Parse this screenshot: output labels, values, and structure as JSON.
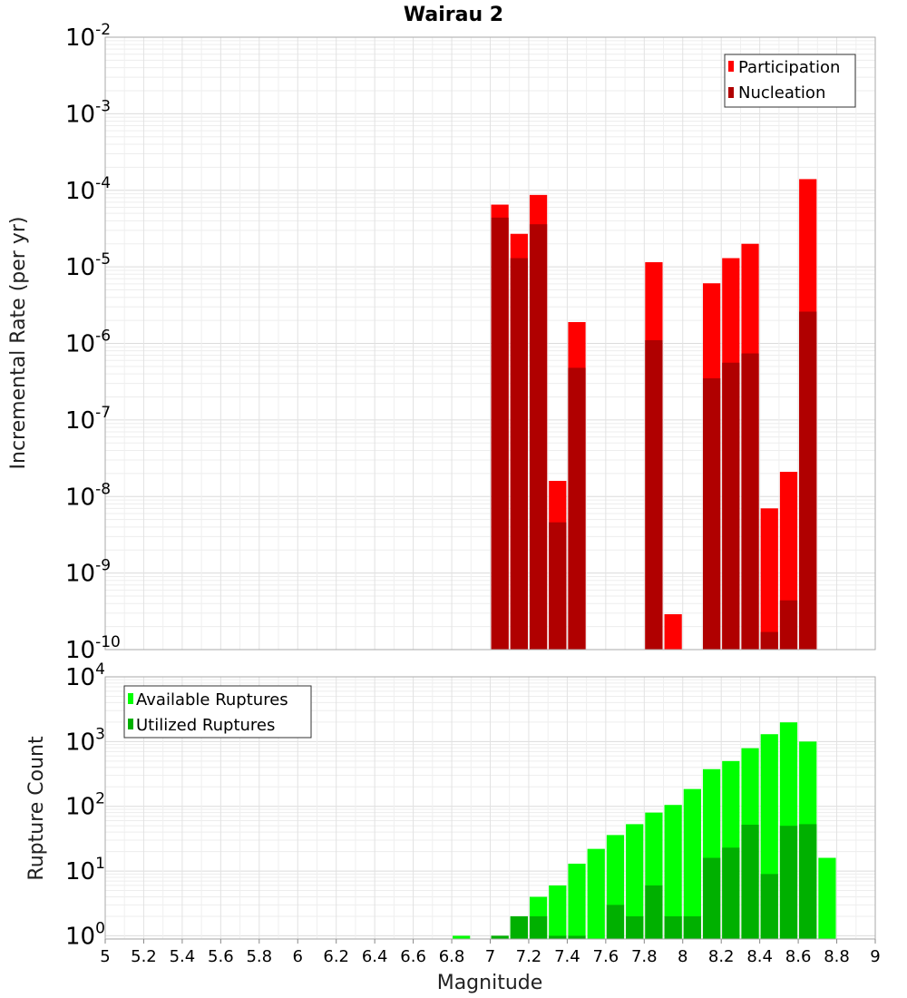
{
  "chart_data": [
    {
      "type": "bar",
      "title": "Wairau 2",
      "ylabel": "Incremental Rate (per yr)",
      "xlabel": "",
      "y_scale": "log",
      "ylim_exponents": [
        -10,
        -2
      ],
      "y_tick_base": "10",
      "y_tick_exponents": [
        "-2",
        "-3",
        "-4",
        "-5",
        "-6",
        "-7",
        "-8",
        "-9",
        "-10"
      ],
      "xlim": [
        5,
        9
      ],
      "bar_width": 0.1,
      "grid": true,
      "legend_position": "top-right",
      "colors": {
        "Participation": "#ff0000",
        "Nucleation": "#b00000"
      },
      "series": [
        {
          "name": "Participation",
          "points": [
            {
              "x": 7.05,
              "y": 6.5e-05
            },
            {
              "x": 7.15,
              "y": 2.7e-05
            },
            {
              "x": 7.25,
              "y": 8.7e-05
            },
            {
              "x": 7.35,
              "y": 1.6e-08
            },
            {
              "x": 7.45,
              "y": 1.9e-06
            },
            {
              "x": 7.85,
              "y": 1.15e-05
            },
            {
              "x": 7.95,
              "y": 2.9e-10
            },
            {
              "x": 8.15,
              "y": 6.1e-06
            },
            {
              "x": 8.25,
              "y": 1.3e-05
            },
            {
              "x": 8.35,
              "y": 2e-05
            },
            {
              "x": 8.45,
              "y": 7e-09
            },
            {
              "x": 8.55,
              "y": 2.1e-08
            },
            {
              "x": 8.65,
              "y": 0.00014
            }
          ]
        },
        {
          "name": "Nucleation",
          "points": [
            {
              "x": 7.05,
              "y": 4.4e-05
            },
            {
              "x": 7.15,
              "y": 1.3e-05
            },
            {
              "x": 7.25,
              "y": 3.6e-05
            },
            {
              "x": 7.35,
              "y": 4.6e-09
            },
            {
              "x": 7.45,
              "y": 4.8e-07
            },
            {
              "x": 7.85,
              "y": 1.1e-06
            },
            {
              "x": 8.15,
              "y": 3.5e-07
            },
            {
              "x": 8.25,
              "y": 5.6e-07
            },
            {
              "x": 8.35,
              "y": 7.4e-07
            },
            {
              "x": 8.45,
              "y": 1.7e-10
            },
            {
              "x": 8.55,
              "y": 4.4e-10
            },
            {
              "x": 8.65,
              "y": 2.6e-06
            }
          ]
        }
      ]
    },
    {
      "type": "bar",
      "title": "",
      "ylabel": "Rupture Count",
      "xlabel": "Magnitude",
      "y_scale": "log",
      "ylim_exponents": [
        -0.05,
        4
      ],
      "y_tick_base": "10",
      "y_tick_exponents": [
        "4",
        "3",
        "2",
        "1",
        "0"
      ],
      "xlim": [
        5,
        9
      ],
      "x_tick_labels": [
        "5",
        "5.2",
        "5.4",
        "5.6",
        "5.8",
        "6",
        "6.2",
        "6.4",
        "6.6",
        "6.8",
        "7",
        "7.2",
        "7.4",
        "7.6",
        "7.8",
        "8",
        "8.2",
        "8.4",
        "8.6",
        "8.8",
        "9"
      ],
      "bar_width": 0.1,
      "grid": true,
      "legend_position": "top-left",
      "colors": {
        "Available Ruptures": "#00ff00",
        "Utilized Ruptures": "#00b000"
      },
      "series": [
        {
          "name": "Available Ruptures",
          "points": [
            {
              "x": 6.85,
              "y": 1
            },
            {
              "x": 7.05,
              "y": 1
            },
            {
              "x": 7.15,
              "y": 2
            },
            {
              "x": 7.25,
              "y": 4
            },
            {
              "x": 7.35,
              "y": 6
            },
            {
              "x": 7.45,
              "y": 13
            },
            {
              "x": 7.55,
              "y": 22
            },
            {
              "x": 7.65,
              "y": 36
            },
            {
              "x": 7.75,
              "y": 53
            },
            {
              "x": 7.85,
              "y": 80
            },
            {
              "x": 7.95,
              "y": 105
            },
            {
              "x": 8.05,
              "y": 185
            },
            {
              "x": 8.15,
              "y": 375
            },
            {
              "x": 8.25,
              "y": 500
            },
            {
              "x": 8.35,
              "y": 790
            },
            {
              "x": 8.45,
              "y": 1300
            },
            {
              "x": 8.55,
              "y": 1980
            },
            {
              "x": 8.65,
              "y": 1000
            },
            {
              "x": 8.75,
              "y": 16
            }
          ]
        },
        {
          "name": "Utilized Ruptures",
          "points": [
            {
              "x": 7.05,
              "y": 1
            },
            {
              "x": 7.15,
              "y": 2
            },
            {
              "x": 7.25,
              "y": 2
            },
            {
              "x": 7.35,
              "y": 1
            },
            {
              "x": 7.45,
              "y": 1
            },
            {
              "x": 7.65,
              "y": 3
            },
            {
              "x": 7.75,
              "y": 2
            },
            {
              "x": 7.85,
              "y": 6
            },
            {
              "x": 7.95,
              "y": 2
            },
            {
              "x": 8.05,
              "y": 2
            },
            {
              "x": 8.15,
              "y": 16
            },
            {
              "x": 8.25,
              "y": 23
            },
            {
              "x": 8.35,
              "y": 52
            },
            {
              "x": 8.45,
              "y": 9
            },
            {
              "x": 8.55,
              "y": 50
            },
            {
              "x": 8.65,
              "y": 53
            }
          ]
        }
      ]
    }
  ]
}
